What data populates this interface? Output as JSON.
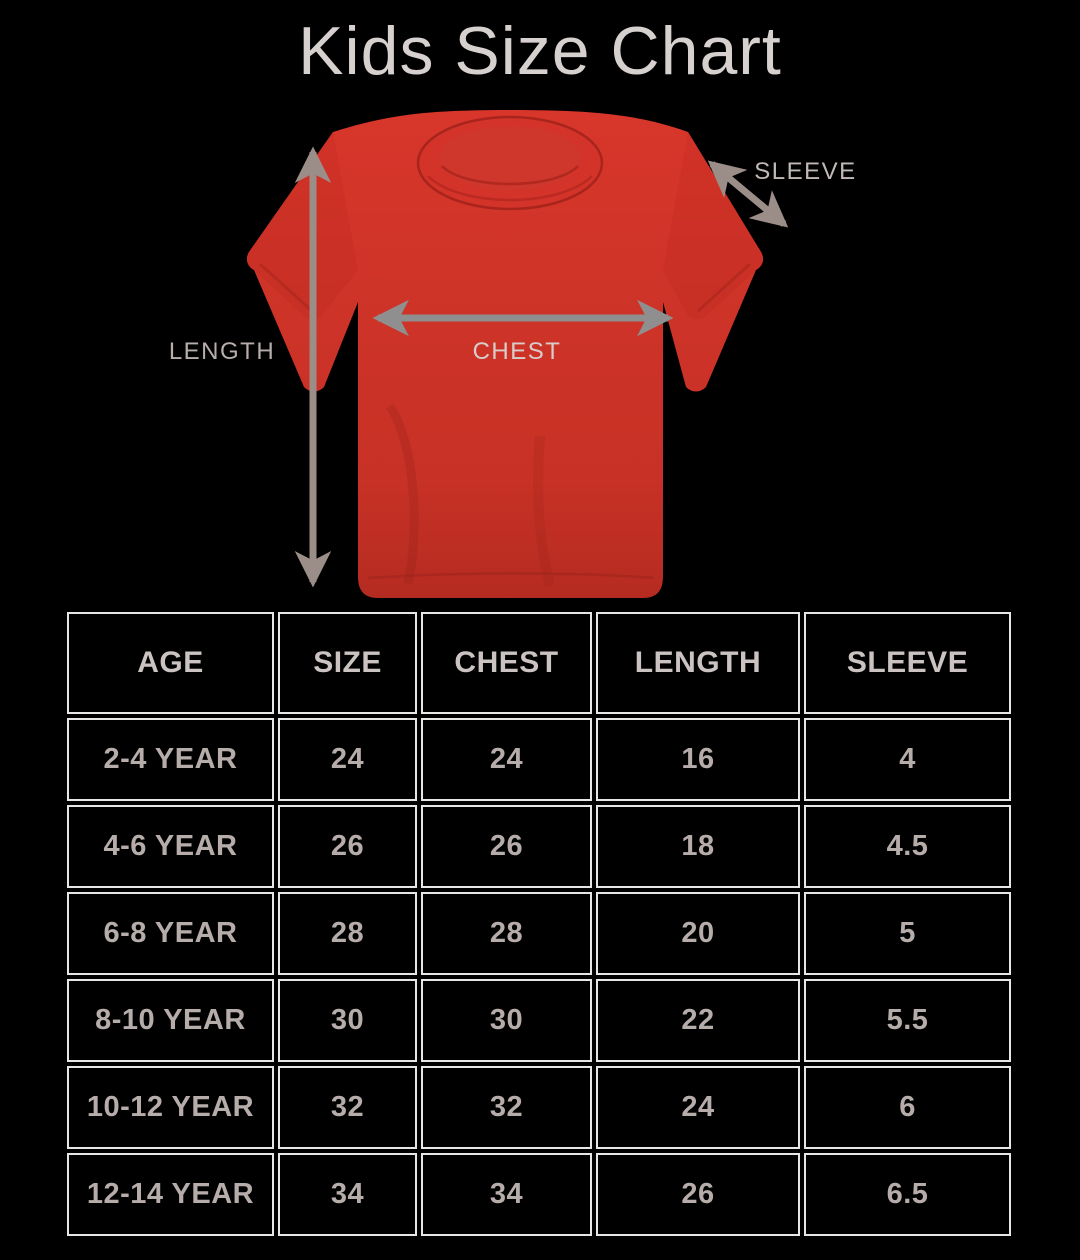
{
  "title": "Kids Size Chart",
  "diagram": {
    "length_label": "LENGTH",
    "chest_label": "CHEST",
    "sleeve_label": "SLEEVE",
    "shirt_color": "#d8362a",
    "length_arrow_color": "#9b8e89",
    "chest_arrow_color": "#8f8f8f",
    "sleeve_arrow_color": "#9b8e89"
  },
  "table": {
    "headers": [
      "AGE",
      "SIZE",
      "CHEST",
      "LENGTH",
      "SLEEVE"
    ],
    "rows": [
      [
        "2-4 YEAR",
        "24",
        "24",
        "16",
        "4"
      ],
      [
        "4-6 YEAR",
        "26",
        "26",
        "18",
        "4.5"
      ],
      [
        "6-8 YEAR",
        "28",
        "28",
        "20",
        "5"
      ],
      [
        "8-10 YEAR",
        "30",
        "30",
        "22",
        "5.5"
      ],
      [
        "10-12 YEAR",
        "32",
        "32",
        "24",
        "6"
      ],
      [
        "12-14 YEAR",
        "34",
        "34",
        "26",
        "6.5"
      ]
    ]
  }
}
